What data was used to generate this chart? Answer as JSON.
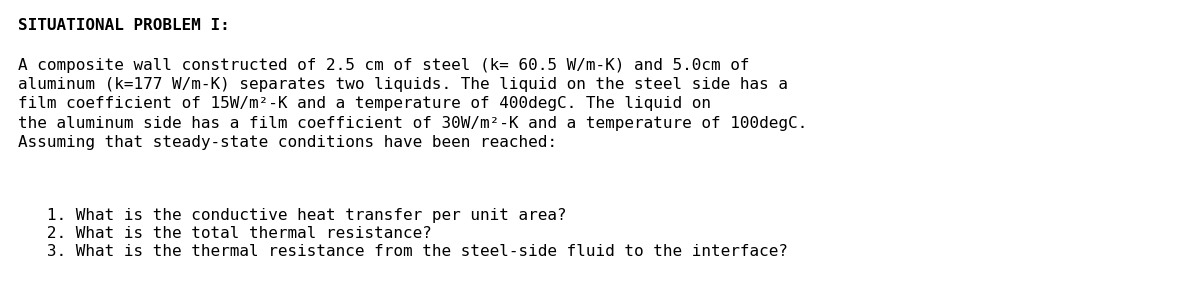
{
  "title": "SITUATIONAL PROBLEM I:",
  "title_fontsize": 11.5,
  "title_fontweight": "bold",
  "title_fontfamily": "monospace",
  "body_text": "A composite wall constructed of 2.5 cm of steel (k= 60.5 W/m-K) and 5.0cm of\naluminum (k=177 W/m-K) separates two liquids. The liquid on the steel side has a\nfilm coefficient of 15W/m²-K and a temperature of 400degC. The liquid on\nthe aluminum side has a film coefficient of 30W/m²-K and a temperature of 100degC.\nAssuming that steady-state conditions have been reached:",
  "body_fontsize": 11.5,
  "body_fontfamily": "monospace",
  "items": [
    "   1. What is the conductive heat transfer per unit area?",
    "   2. What is the total thermal resistance?",
    "   3. What is the thermal resistance from the steel-side fluid to the interface?"
  ],
  "items_fontsize": 11.5,
  "items_fontfamily": "monospace",
  "background_color": "#ffffff",
  "text_color": "#000000"
}
